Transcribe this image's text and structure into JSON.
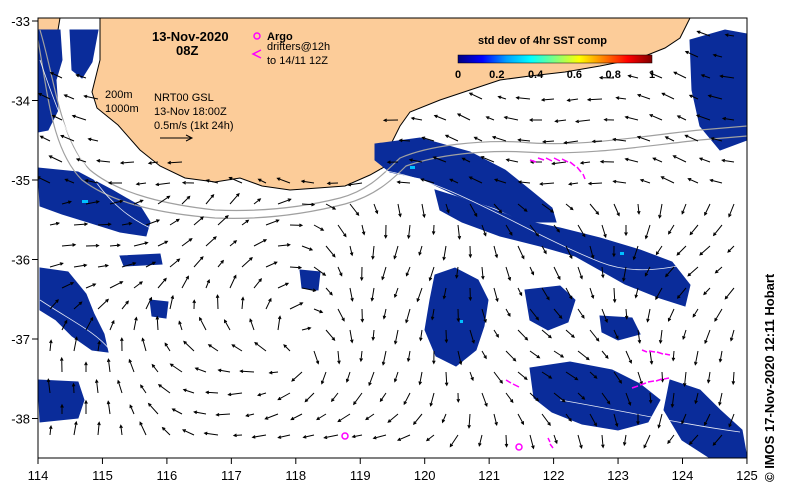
{
  "map": {
    "date": "13-Nov-2020",
    "hour": "08Z",
    "argo_label": "Argo",
    "drifters_label": "drifters@12h",
    "drifters_range": "to 14/11 12Z",
    "isobath_200": "200m",
    "isobath_1000": "1000m",
    "product": "NRT00 GSL",
    "product_time": "13-Nov 18:00Z",
    "arrow_scale": "0.5m/s (1kt 24h)",
    "colorbar": {
      "title": "std dev of 4hr SST comp",
      "ticks": [
        "0",
        "0.2",
        "0.4",
        "0.6",
        "0.8",
        "1"
      ],
      "stops": [
        "#000080",
        "#0000ff",
        "#00a0ff",
        "#00ffff",
        "#80ff80",
        "#ffff00",
        "#ff8000",
        "#ff0000",
        "#800000"
      ]
    },
    "x_ticks": [
      "114",
      "115",
      "116",
      "117",
      "118",
      "119",
      "120",
      "121",
      "122",
      "123",
      "124",
      "125"
    ],
    "y_ticks": [
      "-33",
      "-34",
      "-35",
      "-36",
      "-37",
      "-38"
    ],
    "credit": "© IMOS 17-Nov-2020 12:11 Hobart",
    "colors": {
      "land": "#fccc99",
      "sst": "#0a2c9a",
      "drifter": "#ff00ff",
      "isobath": "#a0a0a0"
    }
  }
}
